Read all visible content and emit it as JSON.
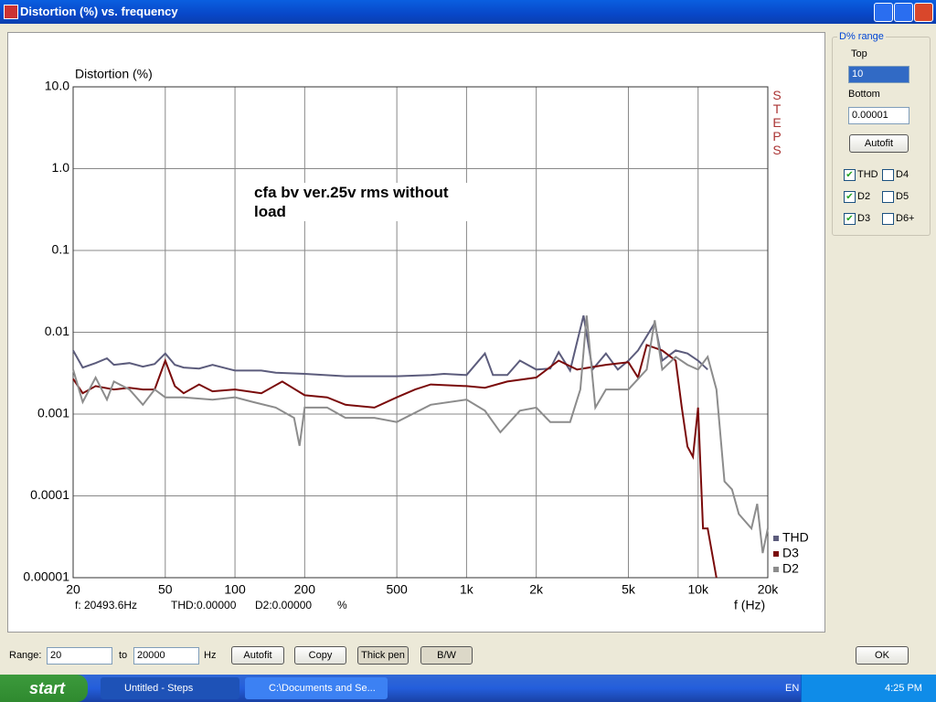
{
  "window": {
    "title": "Distortion (%) vs. frequency"
  },
  "chart_data": {
    "type": "line",
    "y_label": "Distortion (%)",
    "x_label": "f (Hz)",
    "annotation": "cfa bv ver.25v rms without load",
    "watermark": "STEPS",
    "xscale": "log",
    "yscale": "log",
    "grid": true,
    "xlim": [
      20,
      20000
    ],
    "ylim": [
      1e-05,
      10
    ],
    "xticks": [
      20,
      50,
      100,
      200,
      500,
      {
        "value": 1000,
        "label": "1k"
      },
      {
        "value": 2000,
        "label": "2k"
      },
      {
        "value": 5000,
        "label": "5k"
      },
      {
        "value": 10000,
        "label": "10k"
      },
      {
        "value": 20000,
        "label": "20k"
      }
    ],
    "yticks": [
      {
        "value": 10,
        "label": "10.0"
      },
      {
        "value": 1,
        "label": "1.0"
      },
      {
        "value": 0.1,
        "label": "0.1"
      },
      {
        "value": 0.01,
        "label": "0.01"
      },
      {
        "value": 0.001,
        "label": "0.001"
      },
      {
        "value": 0.0001,
        "label": "0.0001"
      },
      {
        "value": 1e-05,
        "label": "0.00001"
      }
    ],
    "series": [
      {
        "name": "THD",
        "color": "#5c5c7c",
        "x": [
          20,
          22,
          25,
          28,
          30,
          35,
          40,
          45,
          50,
          55,
          60,
          70,
          80,
          100,
          130,
          150,
          200,
          300,
          400,
          500,
          700,
          800,
          1000,
          1200,
          1300,
          1500,
          1700,
          2000,
          2300,
          2500,
          2800,
          3200,
          3500,
          4000,
          4500,
          5000,
          5500,
          6500,
          7000,
          8000,
          9000,
          10000,
          11000
        ],
        "values": [
          0.006,
          0.0037,
          0.0042,
          0.0048,
          0.004,
          0.0042,
          0.0038,
          0.0041,
          0.0055,
          0.004,
          0.0037,
          0.0036,
          0.004,
          0.0034,
          0.0034,
          0.0032,
          0.0031,
          0.0029,
          0.0029,
          0.0029,
          0.003,
          0.0031,
          0.003,
          0.0055,
          0.003,
          0.003,
          0.0045,
          0.0035,
          0.0036,
          0.0057,
          0.0034,
          0.016,
          0.0035,
          0.0055,
          0.0035,
          0.0045,
          0.006,
          0.013,
          0.0045,
          0.006,
          0.0055,
          0.0045,
          0.0035
        ]
      },
      {
        "name": "D3",
        "color": "#7a0a0a",
        "x": [
          20,
          22,
          25,
          30,
          35,
          40,
          45,
          50,
          55,
          60,
          70,
          80,
          100,
          130,
          160,
          200,
          250,
          300,
          400,
          500,
          600,
          700,
          1000,
          1200,
          1500,
          2000,
          2500,
          3000,
          4000,
          5000,
          5500,
          6000,
          7000,
          8000,
          8500,
          9000,
          9500,
          10000,
          10500,
          11000,
          12000
        ],
        "values": [
          0.0027,
          0.0018,
          0.0022,
          0.002,
          0.0021,
          0.002,
          0.002,
          0.0045,
          0.0022,
          0.0018,
          0.0023,
          0.0019,
          0.002,
          0.0018,
          0.0025,
          0.0017,
          0.0016,
          0.0013,
          0.0012,
          0.0016,
          0.002,
          0.0023,
          0.0022,
          0.0021,
          0.0025,
          0.0028,
          0.0045,
          0.0035,
          0.004,
          0.0043,
          0.0028,
          0.007,
          0.006,
          0.0045,
          0.0012,
          0.0004,
          0.0003,
          0.0012,
          4e-05,
          4e-05,
          1e-05
        ]
      },
      {
        "name": "D2",
        "color": "#8c8c8c",
        "x": [
          20,
          22,
          25,
          28,
          30,
          35,
          40,
          45,
          50,
          60,
          80,
          100,
          120,
          150,
          180,
          190,
          200,
          250,
          300,
          400,
          500,
          700,
          1000,
          1200,
          1400,
          1700,
          2000,
          2300,
          2800,
          3100,
          3300,
          3600,
          4000,
          5000,
          6000,
          6500,
          7000,
          8000,
          9000,
          10000,
          11000,
          12000,
          13000,
          14000,
          15000,
          17000,
          18000,
          19000,
          20000
        ],
        "values": [
          0.0035,
          0.0014,
          0.0028,
          0.0015,
          0.0025,
          0.002,
          0.0013,
          0.002,
          0.0016,
          0.0016,
          0.0015,
          0.0016,
          0.0014,
          0.0012,
          0.0009,
          0.00041,
          0.0012,
          0.0012,
          0.0009,
          0.0009,
          0.0008,
          0.0013,
          0.0015,
          0.0011,
          0.0006,
          0.0011,
          0.0012,
          0.0008,
          0.0008,
          0.002,
          0.016,
          0.0012,
          0.002,
          0.002,
          0.0035,
          0.014,
          0.0035,
          0.005,
          0.004,
          0.0035,
          0.005,
          0.002,
          0.00015,
          0.00012,
          6e-05,
          4e-05,
          8e-05,
          2e-05,
          4e-05
        ]
      }
    ]
  },
  "status": {
    "freq": "f: 20493.6Hz",
    "thd": "THD:0.00000",
    "d2": "D2:0.00000",
    "unit": "%"
  },
  "panel": {
    "group": "D% range",
    "top_label": "Top",
    "top_value": "10",
    "bottom_label": "Bottom",
    "bottom_value": "0.00001",
    "autofit": "Autofit",
    "checkboxes": [
      {
        "label": "THD",
        "checked": true
      },
      {
        "label": "D4",
        "checked": false
      },
      {
        "label": "D2",
        "checked": true
      },
      {
        "label": "D5",
        "checked": false
      },
      {
        "label": "D3",
        "checked": true
      },
      {
        "label": "D6+",
        "checked": false
      }
    ]
  },
  "toolbar": {
    "range_label": "Range:",
    "range_from": "20",
    "to_label": "to",
    "range_to": "20000",
    "unit": "Hz",
    "autofit": "Autofit",
    "copy": "Copy",
    "thick_pen": "Thick pen",
    "bw": "B/W",
    "ok": "OK"
  },
  "taskbar": {
    "start": "start",
    "task1": "Untitled - Steps",
    "task2": "C:\\Documents and Se...",
    "lang": "EN",
    "clock": "4:25 PM"
  }
}
